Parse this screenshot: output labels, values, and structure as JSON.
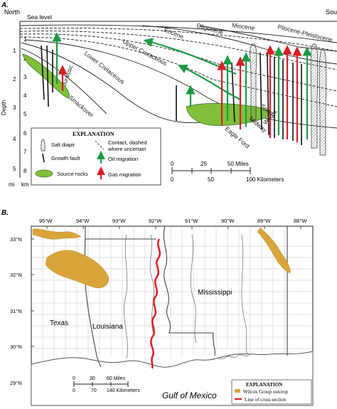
{
  "panel_a": {
    "label": "A.",
    "directions": {
      "north": "North",
      "south": "Sou"
    },
    "sea_level": "Sea level",
    "depth_title": "Depth",
    "units": {
      "mi": "mi",
      "km": "km"
    },
    "mile_ticks": [
      "1",
      "2",
      "3",
      "4",
      "5"
    ],
    "km_ticks": [
      "1",
      "2",
      "3",
      "4",
      "5",
      "6",
      "7",
      "8"
    ],
    "strata": [
      "Jurassic",
      "Smackover",
      "Lower Cretaceous",
      "Upper Cretaceous",
      "Eocene",
      "Oligocene",
      "Miocene",
      "Pliocene-Pleistocene",
      "Midway",
      "Wilcox",
      "Sparta",
      "Eagle Ford"
    ],
    "scale": {
      "miles": [
        "0",
        "25",
        "50 Miles"
      ],
      "km": [
        "0",
        "50",
        "100 Kilometers"
      ]
    },
    "explanation": {
      "title": "EXPLANATION",
      "salt_diapir": "Salt diapir",
      "growth_fault": "Growth fault",
      "source_rocks": "Source rocks",
      "contact_line1": "Contact, dashed",
      "contact_line2": "where uncertain",
      "oil_migration": "Oil migration",
      "gas_migration": "Gas migration"
    }
  },
  "panel_b": {
    "label": "B.",
    "longitudes": [
      "95°W",
      "94°W",
      "93°W",
      "92°W",
      "91°W",
      "90°W",
      "89°W",
      "88°W"
    ],
    "latitudes": [
      "33°N",
      "32°N",
      "31°N",
      "30°N",
      "29°N"
    ],
    "states": [
      "Texas",
      "Louisiana",
      "Mississippi"
    ],
    "gulf": "Gulf of Mexico",
    "scale": {
      "miles": [
        "0",
        "30",
        "60 Miles"
      ],
      "km": [
        "0",
        "70",
        "140 Kilometers"
      ]
    },
    "explanation": {
      "title": "EXPLANATION",
      "outcrop": "Wilcox Group outcrop",
      "section": "Line of cross section"
    }
  },
  "colors": {
    "oil": "#1a9b45",
    "gas": "#d81e25",
    "source_rock": "#7fbf3a",
    "outcrop": "#d9a53a",
    "section_line": "#e32228",
    "water": "#ffffff"
  }
}
